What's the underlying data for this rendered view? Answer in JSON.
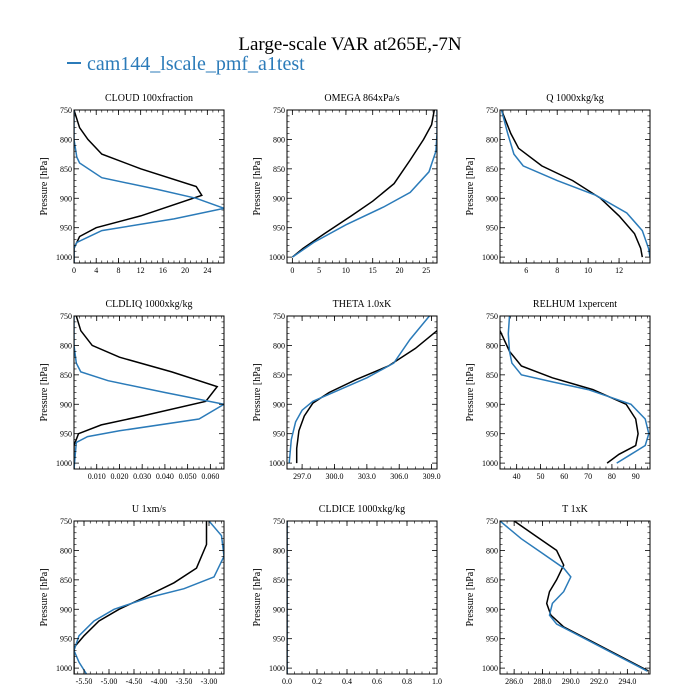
{
  "title": "Large-scale VAR at265E,-7N",
  "legend": {
    "label": "cam144_lscale_pmf_a1test",
    "color": "#2b7bb9"
  },
  "colors": {
    "ref": "#000000",
    "test": "#2b7bb9"
  },
  "chart_data": [
    {
      "type": "line",
      "title": "CLOUD  100xfraction",
      "ylabel": "Pressure [hPa]",
      "xlim": [
        0,
        27
      ],
      "ylim": [
        1010,
        750
      ],
      "xticks": [
        0,
        4,
        8,
        12,
        16,
        20,
        24
      ],
      "xticklabels": [
        "0",
        "4",
        "8",
        "12",
        "16",
        "20",
        "24"
      ],
      "yticks": [
        750,
        800,
        850,
        900,
        950,
        1000
      ],
      "yticklabels": [
        "750",
        "800",
        "850",
        "900",
        "950",
        "1000"
      ],
      "series": [
        {
          "role": "ref",
          "points": [
            [
              0,
              750
            ],
            [
              1,
              780
            ],
            [
              2.5,
              800
            ],
            [
              5,
              825
            ],
            [
              12,
              850
            ],
            [
              22,
              880
            ],
            [
              23,
              895
            ],
            [
              12,
              930
            ],
            [
              4,
              950
            ],
            [
              1,
              965
            ],
            [
              0,
              985
            ],
            [
              0,
              1010
            ]
          ]
        },
        {
          "role": "test",
          "points": [
            [
              0,
              750
            ],
            [
              0,
              800
            ],
            [
              0.5,
              830
            ],
            [
              1,
              840
            ],
            [
              5,
              865
            ],
            [
              15,
              885
            ],
            [
              22,
              900
            ],
            [
              27,
              917
            ],
            [
              18,
              935
            ],
            [
              5,
              955
            ],
            [
              0.5,
              975
            ],
            [
              0,
              985
            ],
            [
              0,
              1010
            ]
          ]
        }
      ]
    },
    {
      "type": "line",
      "title": "OMEGA  864xPa/s",
      "ylabel": "Pressure [hPa]",
      "xlim": [
        -1,
        27
      ],
      "ylim": [
        1010,
        750
      ],
      "xticks": [
        0,
        5,
        10,
        15,
        20,
        25
      ],
      "xticklabels": [
        "0",
        "5",
        "10",
        "15",
        "20",
        "25"
      ],
      "yticks": [
        750,
        800,
        850,
        900,
        950,
        1000
      ],
      "yticklabels": [
        "750",
        "800",
        "850",
        "900",
        "950",
        "1000"
      ],
      "series": [
        {
          "role": "ref",
          "points": [
            [
              26.5,
              750
            ],
            [
              26,
              775
            ],
            [
              24.5,
              800
            ],
            [
              22,
              835
            ],
            [
              19,
              875
            ],
            [
              15,
              905
            ],
            [
              11,
              930
            ],
            [
              6,
              960
            ],
            [
              2,
              985
            ],
            [
              0,
              1000
            ]
          ]
        },
        {
          "role": "test",
          "points": [
            [
              27,
              750
            ],
            [
              27,
              790
            ],
            [
              26.8,
              820
            ],
            [
              25.5,
              855
            ],
            [
              22,
              890
            ],
            [
              17,
              915
            ],
            [
              10,
              945
            ],
            [
              4,
              975
            ],
            [
              0,
              1000
            ]
          ]
        }
      ]
    },
    {
      "type": "line",
      "title": "Q  1000xkg/kg",
      "ylabel": "Pressure [hPa]",
      "xlim": [
        4.3,
        14
      ],
      "ylim": [
        1010,
        750
      ],
      "xticks": [
        6,
        8,
        10,
        12
      ],
      "xticklabels": [
        "6",
        "8",
        "10",
        "12"
      ],
      "yticks": [
        750,
        800,
        850,
        900,
        950,
        1000
      ],
      "yticklabels": [
        "750",
        "800",
        "850",
        "900",
        "950",
        "1000"
      ],
      "series": [
        {
          "role": "ref",
          "points": [
            [
              4.4,
              750
            ],
            [
              5,
              790
            ],
            [
              5.5,
              815
            ],
            [
              7,
              845
            ],
            [
              9,
              870
            ],
            [
              10.8,
              900
            ],
            [
              12,
              930
            ],
            [
              13,
              960
            ],
            [
              13.4,
              985
            ],
            [
              13.5,
              1000
            ]
          ]
        },
        {
          "role": "test",
          "points": [
            [
              4.4,
              750
            ],
            [
              4.8,
              790
            ],
            [
              5.2,
              825
            ],
            [
              5.8,
              845
            ],
            [
              8,
              870
            ],
            [
              10.5,
              895
            ],
            [
              12.5,
              925
            ],
            [
              13.5,
              955
            ],
            [
              13.9,
              985
            ],
            [
              14,
              1000
            ]
          ]
        }
      ]
    },
    {
      "type": "line",
      "title": "CLDLIQ  1000xkg/kg",
      "ylabel": "Pressure [hPa]",
      "xlim": [
        0,
        0.066
      ],
      "ylim": [
        1010,
        750
      ],
      "xticks": [
        0.01,
        0.02,
        0.03,
        0.04,
        0.05,
        0.06
      ],
      "xticklabels": [
        "0.010",
        "0.020",
        "0.030",
        "0.040",
        "0.050",
        "0.060"
      ],
      "yticks": [
        750,
        800,
        850,
        900,
        950,
        1000
      ],
      "yticklabels": [
        "750",
        "800",
        "850",
        "900",
        "950",
        "1000"
      ],
      "series": [
        {
          "role": "ref",
          "points": [
            [
              0.001,
              750
            ],
            [
              0.003,
              775
            ],
            [
              0.008,
              800
            ],
            [
              0.02,
              820
            ],
            [
              0.043,
              845
            ],
            [
              0.063,
              870
            ],
            [
              0.058,
              895
            ],
            [
              0.03,
              920
            ],
            [
              0.012,
              935
            ],
            [
              0.002,
              950
            ],
            [
              0,
              970
            ],
            [
              0,
              1010
            ]
          ]
        },
        {
          "role": "test",
          "points": [
            [
              0,
              750
            ],
            [
              0,
              800
            ],
            [
              0.001,
              830
            ],
            [
              0.003,
              845
            ],
            [
              0.015,
              860
            ],
            [
              0.04,
              880
            ],
            [
              0.066,
              900
            ],
            [
              0.055,
              925
            ],
            [
              0.02,
              945
            ],
            [
              0.006,
              955
            ],
            [
              0.001,
              965
            ],
            [
              0,
              1010
            ]
          ]
        }
      ]
    },
    {
      "type": "line",
      "title": "THETA  1.0xK",
      "ylabel": "Pressure [hPa]",
      "xlim": [
        295.6,
        309.5
      ],
      "ylim": [
        1010,
        750
      ],
      "xticks": [
        297.0,
        300.0,
        303.0,
        306.0,
        309.0
      ],
      "xticklabels": [
        "297.0",
        "300.0",
        "303.0",
        "306.0",
        "309.0"
      ],
      "yticks": [
        750,
        800,
        850,
        900,
        950,
        1000
      ],
      "yticklabels": [
        "750",
        "800",
        "850",
        "900",
        "950",
        "1000"
      ],
      "series": [
        {
          "role": "ref",
          "points": [
            [
              309.5,
              775
            ],
            [
              307.5,
              805
            ],
            [
              305,
              835
            ],
            [
              302,
              858
            ],
            [
              299.5,
              880
            ],
            [
              298,
              898
            ],
            [
              297.2,
              920
            ],
            [
              296.7,
              945
            ],
            [
              296.5,
              975
            ],
            [
              296.5,
              1000
            ]
          ]
        },
        {
          "role": "test",
          "points": [
            [
              308.8,
              750
            ],
            [
              307,
              790
            ],
            [
              305.5,
              830
            ],
            [
              303,
              855
            ],
            [
              300.5,
              875
            ],
            [
              298,
              895
            ],
            [
              297,
              910
            ],
            [
              296.4,
              930
            ],
            [
              296,
              960
            ],
            [
              295.8,
              1000
            ]
          ]
        }
      ]
    },
    {
      "type": "line",
      "title": "RELHUM  1xpercent",
      "ylabel": "Pressure [hPa]",
      "xlim": [
        33,
        96
      ],
      "ylim": [
        1010,
        750
      ],
      "xticks": [
        40,
        50,
        60,
        70,
        80,
        90
      ],
      "xticklabels": [
        "40",
        "50",
        "60",
        "70",
        "80",
        "90"
      ],
      "yticks": [
        750,
        800,
        850,
        900,
        950,
        1000
      ],
      "yticklabels": [
        "750",
        "800",
        "850",
        "900",
        "950",
        "1000"
      ],
      "series": [
        {
          "role": "ref",
          "points": [
            [
              33,
              775
            ],
            [
              37,
              810
            ],
            [
              42,
              835
            ],
            [
              55,
              855
            ],
            [
              72,
              875
            ],
            [
              86,
              900
            ],
            [
              90,
              925
            ],
            [
              91,
              950
            ],
            [
              90,
              970
            ],
            [
              83,
              985
            ],
            [
              78,
              1000
            ]
          ]
        },
        {
          "role": "test",
          "points": [
            [
              37,
              750
            ],
            [
              36.5,
              780
            ],
            [
              37,
              810
            ],
            [
              38,
              830
            ],
            [
              42,
              850
            ],
            [
              55,
              862
            ],
            [
              70,
              875
            ],
            [
              88,
              900
            ],
            [
              94,
              925
            ],
            [
              95.5,
              950
            ],
            [
              94,
              970
            ],
            [
              88,
              985
            ],
            [
              82,
              1000
            ]
          ]
        }
      ]
    },
    {
      "type": "line",
      "title": "U  1xm/s",
      "ylabel": "Pressure [hPa]",
      "xlim": [
        -5.7,
        -2.7
      ],
      "ylim": [
        1010,
        750
      ],
      "xticks": [
        -5.5,
        -5.0,
        -4.5,
        -4.0,
        -3.5,
        -3.0
      ],
      "xticklabels": [
        "-5.50",
        "-5.00",
        "-4.50",
        "-4.00",
        "-3.50",
        "-3.00"
      ],
      "yticks": [
        750,
        800,
        850,
        900,
        950,
        1000
      ],
      "yticklabels": [
        "750",
        "800",
        "850",
        "900",
        "950",
        "1000"
      ],
      "series": [
        {
          "role": "ref",
          "points": [
            [
              -3.05,
              750
            ],
            [
              -3.05,
              790
            ],
            [
              -3.25,
              830
            ],
            [
              -3.7,
              855
            ],
            [
              -4.3,
              880
            ],
            [
              -4.8,
              900
            ],
            [
              -5.2,
              920
            ],
            [
              -5.5,
              945
            ],
            [
              -5.7,
              965
            ],
            [
              -5.7,
              1010
            ]
          ]
        },
        {
          "role": "test",
          "points": [
            [
              -3.0,
              750
            ],
            [
              -2.75,
              775
            ],
            [
              -2.7,
              810
            ],
            [
              -2.9,
              845
            ],
            [
              -3.5,
              865
            ],
            [
              -4.2,
              880
            ],
            [
              -4.9,
              900
            ],
            [
              -5.3,
              920
            ],
            [
              -5.6,
              945
            ],
            [
              -5.7,
              970
            ],
            [
              -5.6,
              990
            ],
            [
              -5.45,
              1010
            ]
          ]
        }
      ]
    },
    {
      "type": "line",
      "title": "CLDICE  1000xkg/kg",
      "ylabel": "Pressure [hPa]",
      "xlim": [
        0,
        1
      ],
      "ylim": [
        1010,
        750
      ],
      "xticks": [
        0,
        0.2,
        0.4,
        0.6,
        0.8,
        1.0
      ],
      "xticklabels": [
        "0.0",
        "0.2",
        "0.4",
        "0.6",
        "0.8",
        "1.0"
      ],
      "yticks": [
        750,
        800,
        850,
        900,
        950,
        1000
      ],
      "yticklabels": [
        "750",
        "800",
        "850",
        "900",
        "950",
        "1000"
      ],
      "series": [
        {
          "role": "ref",
          "points": [
            [
              0,
              750
            ],
            [
              0,
              1010
            ]
          ]
        },
        {
          "role": "test",
          "points": [
            [
              0,
              750
            ],
            [
              0,
              1010
            ]
          ]
        }
      ]
    },
    {
      "type": "line",
      "title": "T  1xK",
      "ylabel": "Pressure [hPa]",
      "xlim": [
        285,
        295.6
      ],
      "ylim": [
        1010,
        750
      ],
      "xticks": [
        286,
        288,
        290,
        292,
        294
      ],
      "xticklabels": [
        "286.0",
        "288.0",
        "290.0",
        "292.0",
        "294.0"
      ],
      "yticks": [
        750,
        800,
        850,
        900,
        950,
        1000
      ],
      "yticklabels": [
        "750",
        "800",
        "850",
        "900",
        "950",
        "1000"
      ],
      "series": [
        {
          "role": "ref",
          "points": [
            [
              286,
              750
            ],
            [
              287.5,
              775
            ],
            [
              289,
              800
            ],
            [
              289.5,
              825
            ],
            [
              289,
              850
            ],
            [
              288.5,
              870
            ],
            [
              288.3,
              890
            ],
            [
              288.6,
              910
            ],
            [
              289.5,
              930
            ],
            [
              291.5,
              955
            ],
            [
              293.5,
              980
            ],
            [
              295.5,
              1005
            ]
          ]
        },
        {
          "role": "test",
          "points": [
            [
              285,
              750
            ],
            [
              286.5,
              780
            ],
            [
              288,
              805
            ],
            [
              289.5,
              830
            ],
            [
              290,
              845
            ],
            [
              289.5,
              870
            ],
            [
              288.7,
              890
            ],
            [
              288.5,
              910
            ],
            [
              289,
              925
            ],
            [
              291,
              950
            ],
            [
              293,
              975
            ],
            [
              295.4,
              1005
            ]
          ]
        }
      ]
    }
  ]
}
